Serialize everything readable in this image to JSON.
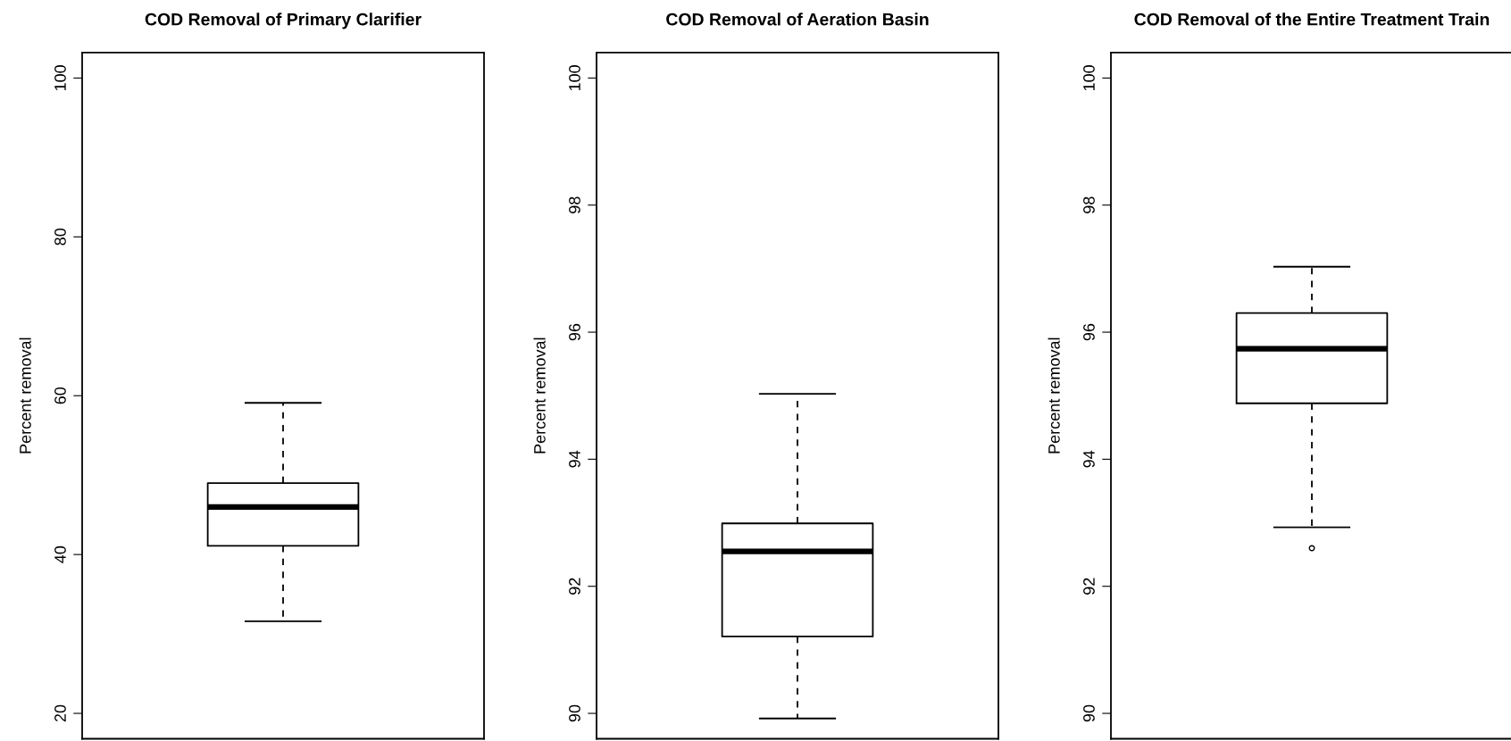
{
  "chart_data": [
    {
      "type": "box",
      "title": "COD Removal of Primary Clarifier",
      "ylabel": "Percent removal",
      "categories": [
        null
      ],
      "tick_labels": "y",
      "grid": false,
      "legend": false,
      "color": "#000000",
      "line_style": "dashed",
      "boxes": [
        {
          "low": 31.6,
          "q1": 41.1,
          "median": 46.0,
          "q3": 49.0,
          "high": 59.1
        }
      ],
      "ylim": [
        16.8,
        103.2
      ],
      "yticks": [
        20,
        40,
        60,
        80,
        100
      ]
    },
    {
      "type": "box",
      "title": "COD Removal of Aeration Basin",
      "ylabel": "Percent removal",
      "categories": [
        null
      ],
      "tick_labels": "y",
      "grid": false,
      "legend": false,
      "color": "#000000",
      "line_style": "dashed",
      "boxes": [
        {
          "low": 89.92,
          "q1": 91.21,
          "median": 92.55,
          "q3": 92.99,
          "high": 95.03
        }
      ],
      "ylim": [
        89.6,
        100.4
      ],
      "yticks": [
        90,
        92,
        94,
        96,
        98,
        100
      ]
    },
    {
      "type": "box",
      "title": "COD Removal of the Entire Treatment Train",
      "ylabel": "Percent removal",
      "categories": [
        null
      ],
      "tick_labels": "y",
      "grid": false,
      "legend": false,
      "color": "#000000",
      "line_style": "dashed",
      "boxes": [
        {
          "low": 92.93,
          "q1": 94.88,
          "median": 95.74,
          "q3": 96.3,
          "high": 97.03,
          "outliers": [
            92.6
          ]
        }
      ],
      "ylim": [
        89.6,
        100.4
      ],
      "yticks": [
        90,
        92,
        94,
        96,
        98,
        100
      ]
    }
  ]
}
